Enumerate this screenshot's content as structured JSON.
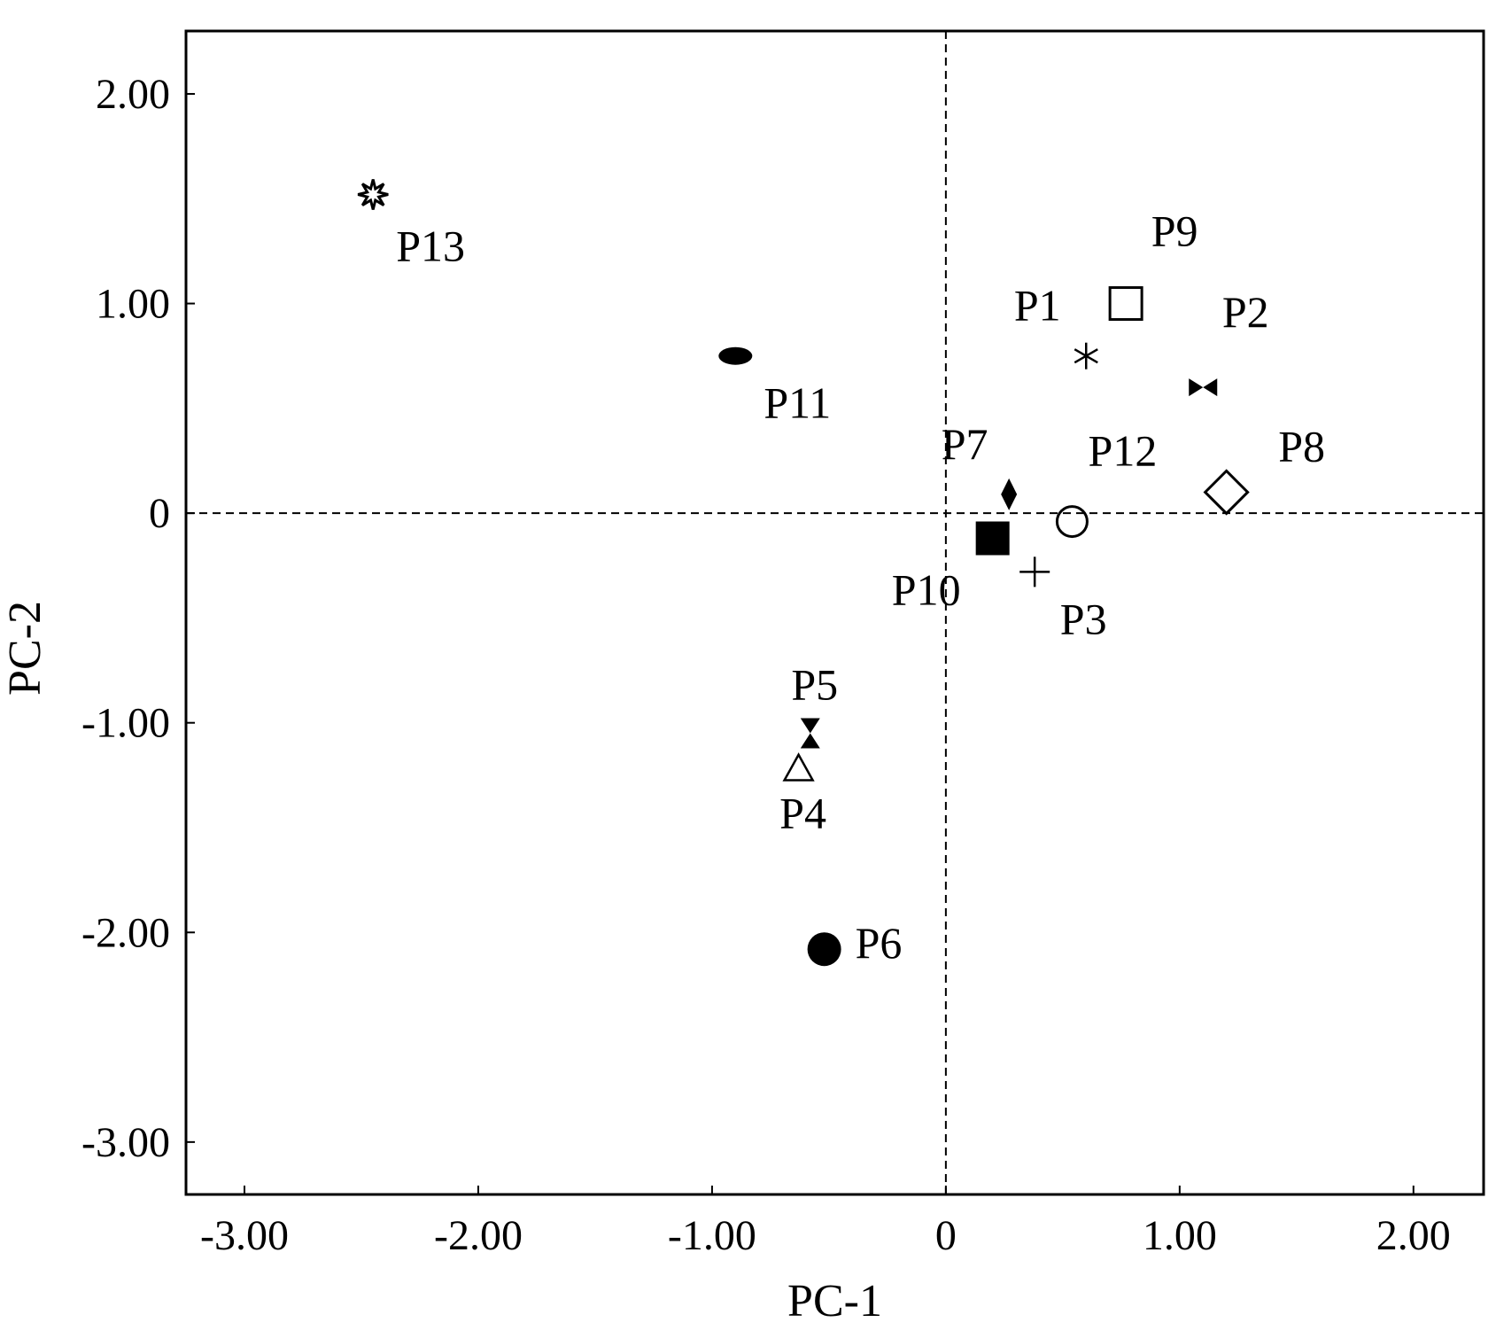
{
  "chart_data": {
    "type": "scatter",
    "title": "",
    "xlabel": "PC-1",
    "ylabel": "PC-2",
    "xlim": [
      -3.25,
      2.3
    ],
    "ylim": [
      -3.25,
      2.3
    ],
    "xticks": [
      -3,
      -2,
      -1,
      0,
      1,
      2
    ],
    "yticks": [
      -3,
      -2,
      -1,
      0,
      1,
      2
    ],
    "xtick_labels": [
      "-3.00",
      "-2.00",
      "-1.00",
      "0",
      "1.00",
      "2.00"
    ],
    "ytick_labels": [
      "-3.00",
      "-2.00",
      "-1.00",
      "0",
      "1.00",
      "2.00"
    ],
    "reference_lines": {
      "x": 0,
      "y": 0,
      "style": "dashed"
    },
    "grid": false,
    "points": [
      {
        "label": "P1",
        "x": 0.6,
        "y": 0.75,
        "marker": "asterisk",
        "label_pos": "upper-left"
      },
      {
        "label": "P2",
        "x": 1.1,
        "y": 0.6,
        "marker": "bowtie",
        "label_pos": "upper-right"
      },
      {
        "label": "P3",
        "x": 0.38,
        "y": -0.28,
        "marker": "plus",
        "label_pos": "lower-right"
      },
      {
        "label": "P4",
        "x": -0.63,
        "y": -1.22,
        "marker": "triangle-open",
        "label_pos": "below"
      },
      {
        "label": "P5",
        "x": -0.58,
        "y": -1.05,
        "marker": "hourglass",
        "label_pos": "above"
      },
      {
        "label": "P6",
        "x": -0.52,
        "y": -2.08,
        "marker": "circle-filled",
        "label_pos": "right"
      },
      {
        "label": "P7",
        "x": 0.27,
        "y": 0.09,
        "marker": "diamond-filled",
        "label_pos": "upper-left"
      },
      {
        "label": "P8",
        "x": 1.2,
        "y": 0.1,
        "marker": "diamond-open",
        "label_pos": "upper-right"
      },
      {
        "label": "P9",
        "x": 0.77,
        "y": 1.0,
        "marker": "square-open",
        "label_pos": "upper-right"
      },
      {
        "label": "P10",
        "x": 0.2,
        "y": -0.12,
        "marker": "square-filled",
        "label_pos": "lower-left"
      },
      {
        "label": "P11",
        "x": -0.9,
        "y": 0.75,
        "marker": "ellipse-filled",
        "label_pos": "lower-right"
      },
      {
        "label": "P12",
        "x": 0.54,
        "y": -0.04,
        "marker": "circle-open",
        "label_pos": "upper-right"
      },
      {
        "label": "P13",
        "x": -2.45,
        "y": 1.52,
        "marker": "star-burst",
        "label_pos": "lower-right"
      }
    ]
  }
}
